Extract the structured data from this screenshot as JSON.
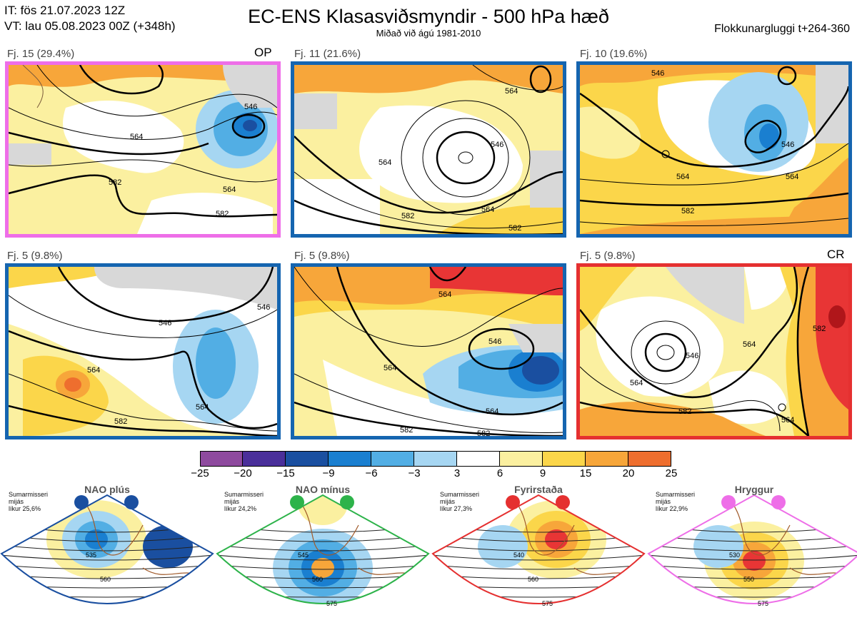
{
  "header": {
    "it_line": "IT: fös 21.07.2023 12Z",
    "vt_line": "VT: lau 05.08.2023 00Z  (+348h)",
    "title": "EC-ENS Klasasviðsmyndir - 500 hPa hæð",
    "subtitle": "Miðað við ágú 1981-2010",
    "window": "Flokkunargluggi t+264-360"
  },
  "panels": [
    {
      "label": "Fj. 15 (29.4%)",
      "tag": "OP",
      "frame": "#ee6ee8",
      "contours": [
        "546",
        "564",
        "564",
        "582",
        "582"
      ]
    },
    {
      "label": "Fj. 11 (21.6%)",
      "tag": "",
      "frame": "#1565b0",
      "contours": [
        "546",
        "564",
        "564",
        "564",
        "582",
        "582"
      ]
    },
    {
      "label": "Fj. 10 (19.6%)",
      "tag": "",
      "frame": "#1565b0",
      "contours": [
        "546",
        "546",
        "564",
        "564",
        "582"
      ]
    },
    {
      "label": "Fj. 5 (9.8%)",
      "tag": "",
      "frame": "#1565b0",
      "contours": [
        "546",
        "564",
        "564",
        "582",
        "546"
      ]
    },
    {
      "label": "Fj. 5 (9.8%)",
      "tag": "",
      "frame": "#1565b0",
      "contours": [
        "546",
        "564",
        "564",
        "564",
        "582",
        "582"
      ]
    },
    {
      "label": "Fj. 5 (9.8%)",
      "tag": "CR",
      "frame": "#e53030",
      "contours": [
        "546",
        "564",
        "564",
        "582",
        "582",
        "564"
      ]
    }
  ],
  "colorbar": {
    "colors": [
      "#8e4a9e",
      "#4a2f9a",
      "#1a4fa0",
      "#1a7fd0",
      "#52aee4",
      "#a6d6f2",
      "#ffffff",
      "#fbf0a0",
      "#fbd64a",
      "#f7a63a",
      "#ee6e2e",
      "#e83535",
      "#b0161a"
    ],
    "ticks": [
      "−25",
      "−20",
      "−15",
      "−9",
      "−6",
      "−3",
      "3",
      "6",
      "9",
      "15",
      "20",
      "25"
    ]
  },
  "regimes": [
    {
      "name": "NAO plús",
      "note": [
        "Sumarmisseri",
        "mijás",
        "líkur 25,6%"
      ],
      "color": "#1a4fa0",
      "contours": [
        "535",
        "560"
      ]
    },
    {
      "name": "NAO mínus",
      "note": [
        "Sumarmisseri",
        "mijás",
        "líkur 24,2%"
      ],
      "color": "#2db34a",
      "contours": [
        "545",
        "560",
        "575"
      ]
    },
    {
      "name": "Fyrirstaða",
      "note": [
        "Sumarmisseri",
        "mijás",
        "líkur 27,3%"
      ],
      "color": "#e53030",
      "contours": [
        "540",
        "560",
        "575"
      ]
    },
    {
      "name": "Hryggur",
      "note": [
        "Sumarmisseri",
        "mijás",
        "líkur 22,9%"
      ],
      "color": "#ee6ee8",
      "contours": [
        "530",
        "550",
        "575"
      ]
    }
  ],
  "icons": {
    "regime_dots": "filled-circle",
    "coastline": "outline"
  }
}
